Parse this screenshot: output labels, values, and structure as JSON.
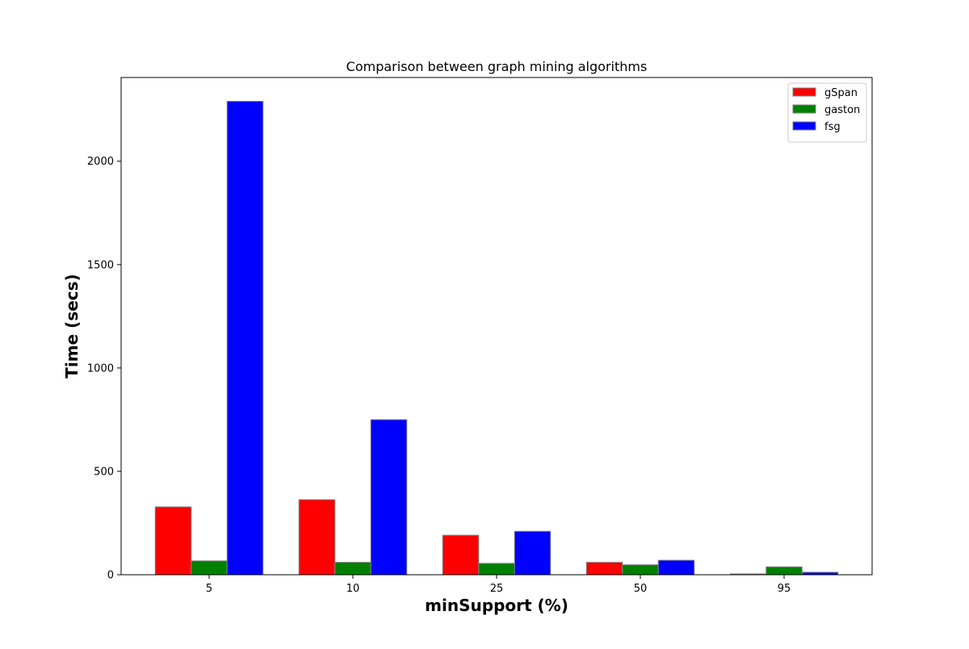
{
  "chart_data": {
    "type": "bar",
    "title": "Comparison between graph mining algorithms",
    "xlabel": "minSupport (%)",
    "ylabel": "Time (secs)",
    "categories": [
      "5",
      "10",
      "25",
      "50",
      "95"
    ],
    "series": [
      {
        "name": "gSpan",
        "color": "#ff0000",
        "values": [
          328,
          363,
          191,
          60,
          4
        ]
      },
      {
        "name": "gaston",
        "color": "#008000",
        "values": [
          67,
          60,
          55,
          48,
          38
        ]
      },
      {
        "name": "fsg",
        "color": "#0000ff",
        "values": [
          2290,
          750,
          210,
          70,
          12
        ]
      }
    ],
    "ylim": [
      0,
      2405
    ],
    "yticks": [
      0,
      500,
      1000,
      1500,
      2000
    ],
    "grid": false,
    "legend_position": "top-right",
    "bar_edge_color": "#808080"
  }
}
